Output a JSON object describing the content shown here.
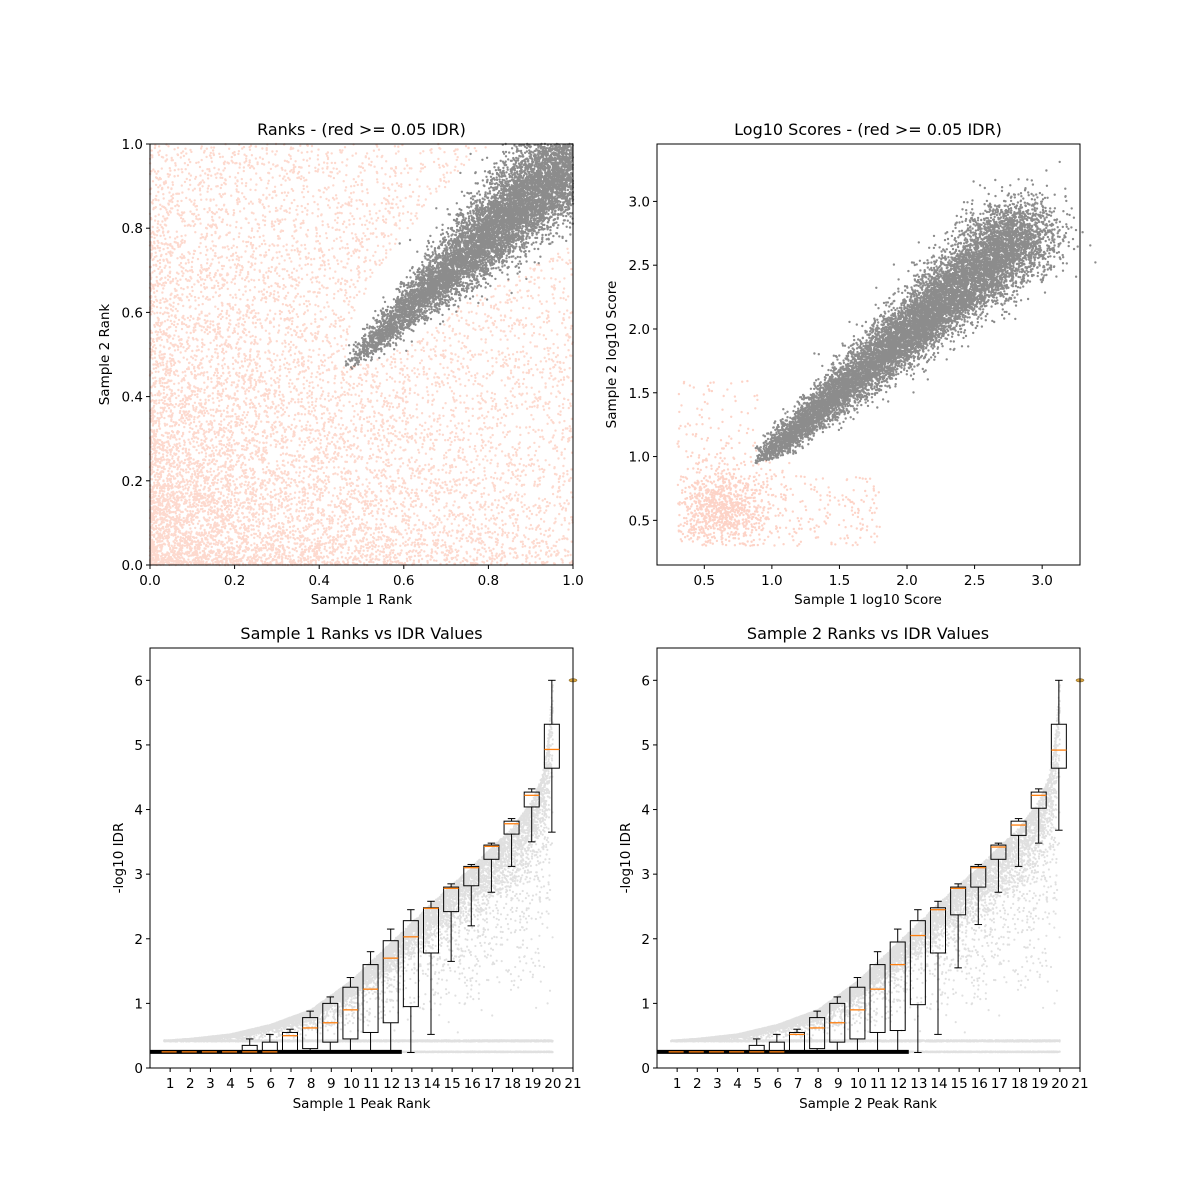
{
  "colors": {
    "low_idr": "#fa9274",
    "high_idr": "#000000",
    "median": "#ff7f0e",
    "box": "#000000",
    "background": "#ffffff"
  },
  "chart_data": [
    {
      "id": "ranks",
      "type": "scatter",
      "title": "Ranks - (red >= 0.05 IDR)",
      "xlabel": "Sample 1 Rank",
      "ylabel": "Sample 2 Rank",
      "xlim": [
        0,
        1
      ],
      "ylim": [
        0,
        1
      ],
      "xticks": [
        0.0,
        0.2,
        0.4,
        0.6,
        0.8,
        1.0
      ],
      "xtick_labels": [
        "0.0",
        "0.2",
        "0.4",
        "0.6",
        "0.8",
        "1.0"
      ],
      "yticks": [
        0.0,
        0.2,
        0.4,
        0.6,
        0.8,
        1.0
      ],
      "ytick_labels": [
        "0.0",
        "0.2",
        "0.4",
        "0.6",
        "0.8",
        "1.0"
      ],
      "grid": false,
      "series": [
        {
          "group": "idr_at_or_above_0.05",
          "color": "#fa9274",
          "region": "uniformly spread over the square, densest near the origin, excluding the reproducible wedge"
        },
        {
          "group": "idr_below_0.05",
          "color": "#000000",
          "wedge_vertex": [
            0.46,
            0.47
          ],
          "upper_edge": [
            [
              0.46,
              0.47
            ],
            [
              0.52,
              0.7
            ],
            [
              0.95,
              1.0
            ]
          ],
          "lower_edge": [
            [
              0.46,
              0.47
            ],
            [
              0.7,
              0.55
            ],
            [
              1.0,
              0.88
            ]
          ]
        }
      ]
    },
    {
      "id": "scores",
      "type": "scatter",
      "title": "Log10 Scores - (red >= 0.05 IDR)",
      "xlabel": "Sample 1 log10 Score",
      "ylabel": "Sample 2 log10 Score",
      "xlim": [
        0.15,
        3.28
      ],
      "ylim": [
        0.15,
        3.45
      ],
      "xticks": [
        0.5,
        1.0,
        1.5,
        2.0,
        2.5,
        3.0
      ],
      "xtick_labels": [
        "0.5",
        "1.0",
        "1.5",
        "2.0",
        "2.5",
        "3.0"
      ],
      "yticks": [
        0.5,
        1.0,
        1.5,
        2.0,
        2.5,
        3.0
      ],
      "ytick_labels": [
        "0.5",
        "1.0",
        "1.5",
        "2.0",
        "2.5",
        "3.0"
      ],
      "grid": false,
      "series": [
        {
          "group": "idr_at_or_above_0.05",
          "color": "#fa9274",
          "cloud": {
            "x": [
              0.3,
              1.9
            ],
            "y": [
              0.3,
              1.6
            ],
            "dense_core": [
              [
                0.3,
                0.3
              ],
              [
                0.95,
                1.2
              ]
            ]
          }
        },
        {
          "group": "idr_below_0.05",
          "color": "#000000",
          "trend": [
            [
              0.9,
              0.95
            ],
            [
              3.05,
              2.9
            ]
          ],
          "outlier": [
            3.13,
            3.31
          ]
        }
      ]
    },
    {
      "id": "sample1-idr",
      "type": "box",
      "title": "Sample 1 Ranks vs IDR Values",
      "xlabel": "Sample 1 Peak Rank",
      "ylabel": "-log10 IDR",
      "xlim": [
        0,
        21
      ],
      "ylim": [
        0,
        6.5
      ],
      "xticks": [
        1,
        2,
        3,
        4,
        5,
        6,
        7,
        8,
        9,
        10,
        11,
        12,
        13,
        14,
        15,
        16,
        17,
        18,
        19,
        20,
        21
      ],
      "xtick_labels": [
        "1",
        "2",
        "3",
        "4",
        "5",
        "6",
        "7",
        "8",
        "9",
        "10",
        "11",
        "12",
        "13",
        "14",
        "15",
        "16",
        "17",
        "18",
        "19",
        "20",
        "21"
      ],
      "yticks": [
        0,
        1,
        2,
        3,
        4,
        5,
        6
      ],
      "ytick_labels": [
        "0",
        "1",
        "2",
        "3",
        "4",
        "5",
        "6"
      ],
      "grid": false,
      "upper_envelope": [
        [
          0.7,
          0.42
        ],
        [
          2,
          0.45
        ],
        [
          4,
          0.52
        ],
        [
          6,
          0.67
        ],
        [
          8,
          0.9
        ],
        [
          10,
          1.35
        ],
        [
          12,
          1.95
        ],
        [
          14,
          2.55
        ],
        [
          16,
          3.12
        ],
        [
          18,
          3.72
        ],
        [
          19,
          4.15
        ],
        [
          19.5,
          4.55
        ],
        [
          19.8,
          5.2
        ],
        [
          20,
          6.0
        ]
      ],
      "boxes": [
        {
          "pos": 0.95,
          "q1": 0.24,
          "median": 0.25,
          "q3": 0.26,
          "whislo": 0.24,
          "whishi": 0.26
        },
        {
          "pos": 1.95,
          "q1": 0.24,
          "median": 0.25,
          "q3": 0.26,
          "whislo": 0.24,
          "whishi": 0.26
        },
        {
          "pos": 2.95,
          "q1": 0.24,
          "median": 0.25,
          "q3": 0.26,
          "whislo": 0.24,
          "whishi": 0.26
        },
        {
          "pos": 3.95,
          "q1": 0.24,
          "median": 0.25,
          "q3": 0.27,
          "whislo": 0.24,
          "whishi": 0.27
        },
        {
          "pos": 4.95,
          "q1": 0.24,
          "median": 0.25,
          "q3": 0.35,
          "whislo": 0.24,
          "whishi": 0.45
        },
        {
          "pos": 5.95,
          "q1": 0.24,
          "median": 0.25,
          "q3": 0.4,
          "whislo": 0.24,
          "whishi": 0.52
        },
        {
          "pos": 6.95,
          "q1": 0.25,
          "median": 0.5,
          "q3": 0.55,
          "whislo": 0.24,
          "whishi": 0.6
        },
        {
          "pos": 7.95,
          "q1": 0.3,
          "median": 0.62,
          "q3": 0.78,
          "whislo": 0.24,
          "whishi": 0.88
        },
        {
          "pos": 8.95,
          "q1": 0.4,
          "median": 0.7,
          "q3": 1.0,
          "whislo": 0.24,
          "whishi": 1.1
        },
        {
          "pos": 9.95,
          "q1": 0.45,
          "median": 0.9,
          "q3": 1.25,
          "whislo": 0.24,
          "whishi": 1.4
        },
        {
          "pos": 10.95,
          "q1": 0.55,
          "median": 1.22,
          "q3": 1.6,
          "whislo": 0.24,
          "whishi": 1.8
        },
        {
          "pos": 11.95,
          "q1": 0.7,
          "median": 1.7,
          "q3": 1.97,
          "whislo": 0.24,
          "whishi": 2.15
        },
        {
          "pos": 12.95,
          "q1": 0.95,
          "median": 2.03,
          "q3": 2.28,
          "whislo": 0.24,
          "whishi": 2.45
        },
        {
          "pos": 13.95,
          "q1": 1.78,
          "median": 2.47,
          "q3": 2.48,
          "whislo": 0.52,
          "whishi": 2.58
        },
        {
          "pos": 14.95,
          "q1": 2.42,
          "median": 2.78,
          "q3": 2.8,
          "whislo": 1.65,
          "whishi": 2.85
        },
        {
          "pos": 15.95,
          "q1": 2.82,
          "median": 3.1,
          "q3": 3.12,
          "whislo": 2.2,
          "whishi": 3.15
        },
        {
          "pos": 16.95,
          "q1": 3.23,
          "median": 3.43,
          "q3": 3.45,
          "whislo": 2.72,
          "whishi": 3.48
        },
        {
          "pos": 17.95,
          "q1": 3.62,
          "median": 3.78,
          "q3": 3.82,
          "whislo": 3.12,
          "whishi": 3.86
        },
        {
          "pos": 18.95,
          "q1": 4.04,
          "median": 4.22,
          "q3": 4.27,
          "whislo": 3.5,
          "whishi": 4.32
        },
        {
          "pos": 19.95,
          "q1": 4.64,
          "median": 4.93,
          "q3": 5.32,
          "whislo": 3.65,
          "whishi": 6.0
        }
      ],
      "flier": {
        "pos": 21,
        "value": 6.0
      }
    },
    {
      "id": "sample2-idr",
      "type": "box",
      "title": "Sample 2 Ranks vs IDR Values",
      "xlabel": "Sample 2 Peak Rank",
      "ylabel": "-log10 IDR",
      "xlim": [
        0,
        21
      ],
      "ylim": [
        0,
        6.5
      ],
      "xticks": [
        1,
        2,
        3,
        4,
        5,
        6,
        7,
        8,
        9,
        10,
        11,
        12,
        13,
        14,
        15,
        16,
        17,
        18,
        19,
        20,
        21
      ],
      "xtick_labels": [
        "1",
        "2",
        "3",
        "4",
        "5",
        "6",
        "7",
        "8",
        "9",
        "10",
        "11",
        "12",
        "13",
        "14",
        "15",
        "16",
        "17",
        "18",
        "19",
        "20",
        "21"
      ],
      "yticks": [
        0,
        1,
        2,
        3,
        4,
        5,
        6
      ],
      "ytick_labels": [
        "0",
        "1",
        "2",
        "3",
        "4",
        "5",
        "6"
      ],
      "grid": false,
      "upper_envelope": [
        [
          0.7,
          0.42
        ],
        [
          2,
          0.45
        ],
        [
          4,
          0.52
        ],
        [
          6,
          0.67
        ],
        [
          8,
          0.9
        ],
        [
          10,
          1.35
        ],
        [
          12,
          1.95
        ],
        [
          14,
          2.55
        ],
        [
          16,
          3.12
        ],
        [
          18,
          3.72
        ],
        [
          19,
          4.15
        ],
        [
          19.5,
          4.55
        ],
        [
          19.8,
          5.2
        ],
        [
          20,
          6.0
        ]
      ],
      "boxes": [
        {
          "pos": 0.95,
          "q1": 0.24,
          "median": 0.25,
          "q3": 0.26,
          "whislo": 0.24,
          "whishi": 0.26
        },
        {
          "pos": 1.95,
          "q1": 0.24,
          "median": 0.25,
          "q3": 0.26,
          "whislo": 0.24,
          "whishi": 0.26
        },
        {
          "pos": 2.95,
          "q1": 0.24,
          "median": 0.25,
          "q3": 0.26,
          "whislo": 0.24,
          "whishi": 0.26
        },
        {
          "pos": 3.95,
          "q1": 0.24,
          "median": 0.25,
          "q3": 0.27,
          "whislo": 0.24,
          "whishi": 0.27
        },
        {
          "pos": 4.95,
          "q1": 0.24,
          "median": 0.25,
          "q3": 0.35,
          "whislo": 0.24,
          "whishi": 0.45
        },
        {
          "pos": 5.95,
          "q1": 0.24,
          "median": 0.25,
          "q3": 0.4,
          "whislo": 0.24,
          "whishi": 0.52
        },
        {
          "pos": 6.95,
          "q1": 0.25,
          "median": 0.52,
          "q3": 0.55,
          "whislo": 0.24,
          "whishi": 0.6
        },
        {
          "pos": 7.95,
          "q1": 0.3,
          "median": 0.62,
          "q3": 0.78,
          "whislo": 0.24,
          "whishi": 0.88
        },
        {
          "pos": 8.95,
          "q1": 0.4,
          "median": 0.7,
          "q3": 1.0,
          "whislo": 0.24,
          "whishi": 1.1
        },
        {
          "pos": 9.95,
          "q1": 0.45,
          "median": 0.9,
          "q3": 1.25,
          "whislo": 0.24,
          "whishi": 1.4
        },
        {
          "pos": 10.95,
          "q1": 0.55,
          "median": 1.22,
          "q3": 1.6,
          "whislo": 0.24,
          "whishi": 1.8
        },
        {
          "pos": 11.95,
          "q1": 0.58,
          "median": 1.6,
          "q3": 1.95,
          "whislo": 0.24,
          "whishi": 2.15
        },
        {
          "pos": 12.95,
          "q1": 0.98,
          "median": 2.05,
          "q3": 2.28,
          "whislo": 0.24,
          "whishi": 2.45
        },
        {
          "pos": 13.95,
          "q1": 1.78,
          "median": 2.45,
          "q3": 2.48,
          "whislo": 0.52,
          "whishi": 2.58
        },
        {
          "pos": 14.95,
          "q1": 2.37,
          "median": 2.78,
          "q3": 2.8,
          "whislo": 1.55,
          "whishi": 2.85
        },
        {
          "pos": 15.95,
          "q1": 2.8,
          "median": 3.1,
          "q3": 3.12,
          "whislo": 2.22,
          "whishi": 3.15
        },
        {
          "pos": 16.95,
          "q1": 3.23,
          "median": 3.42,
          "q3": 3.45,
          "whislo": 2.72,
          "whishi": 3.48
        },
        {
          "pos": 17.95,
          "q1": 3.6,
          "median": 3.76,
          "q3": 3.82,
          "whislo": 3.12,
          "whishi": 3.86
        },
        {
          "pos": 18.95,
          "q1": 4.02,
          "median": 4.22,
          "q3": 4.27,
          "whislo": 3.48,
          "whishi": 4.32
        },
        {
          "pos": 19.95,
          "q1": 4.64,
          "median": 4.92,
          "q3": 5.32,
          "whislo": 3.68,
          "whishi": 6.0
        }
      ],
      "flier": {
        "pos": 21,
        "value": 6.0
      }
    }
  ]
}
